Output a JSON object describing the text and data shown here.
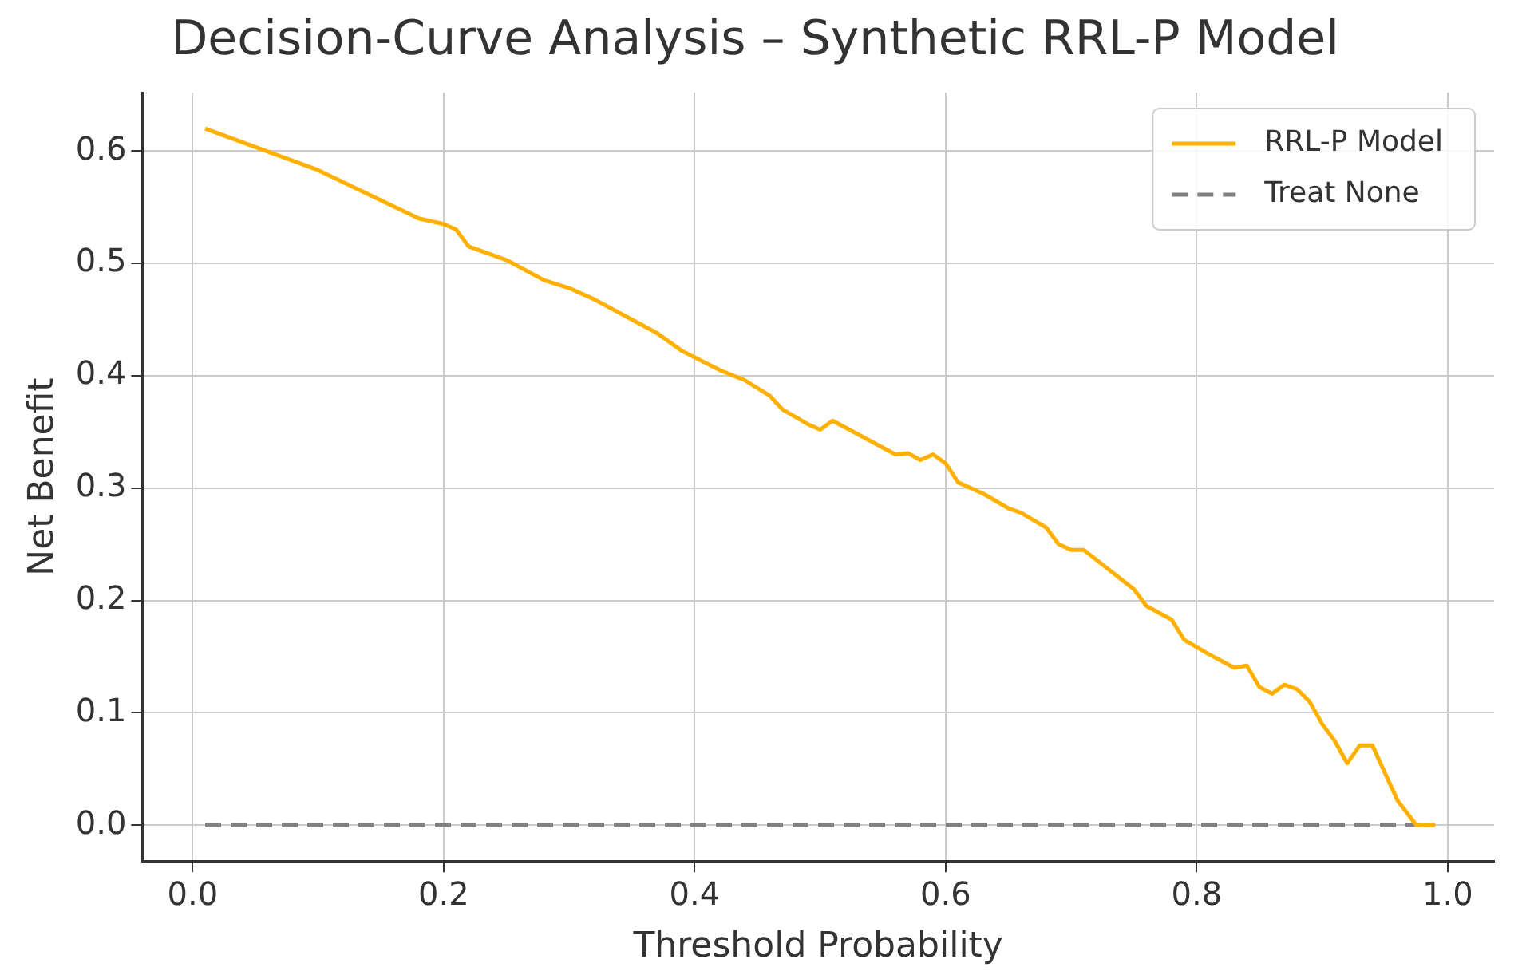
{
  "chart_data": {
    "type": "line",
    "title": "Decision-Curve Analysis – Synthetic RRL-P Model",
    "xlabel": "Threshold Probability",
    "ylabel": "Net Benefit",
    "xlim": [
      -0.04,
      1.037
    ],
    "ylim": [
      -0.032,
      0.652
    ],
    "xticks": [
      {
        "value": 0,
        "label": "0.0"
      },
      0.2,
      0.4,
      0.6,
      0.8,
      {
        "value": 1,
        "label": "1.0"
      }
    ],
    "yticks": [
      {
        "value": 0,
        "label": "0.0"
      },
      0.1,
      0.2,
      0.3,
      0.4,
      0.5,
      0.6
    ],
    "grid": true,
    "legend": "top right",
    "marker": "none",
    "series": [
      {
        "name": "RRL-P Model",
        "color": "#ffb000",
        "line_style": "solid",
        "x": [
          0.01,
          0.1,
          0.18,
          0.2,
          0.21,
          0.22,
          0.25,
          0.28,
          0.3,
          0.32,
          0.35,
          0.37,
          0.39,
          0.42,
          0.44,
          0.46,
          0.47,
          0.49,
          0.5,
          0.51,
          0.56,
          0.57,
          0.58,
          0.59,
          0.6,
          0.61,
          0.63,
          0.65,
          0.66,
          0.68,
          0.69,
          0.7,
          0.71,
          0.75,
          0.76,
          0.78,
          0.79,
          0.81,
          0.83,
          0.84,
          0.85,
          0.86,
          0.87,
          0.88,
          0.89,
          0.9,
          0.91,
          0.92,
          0.93,
          0.94,
          0.96,
          0.975,
          0.99
        ],
        "values": [
          0.62,
          0.583,
          0.54,
          0.535,
          0.53,
          0.515,
          0.503,
          0.485,
          0.478,
          0.468,
          0.45,
          0.438,
          0.422,
          0.405,
          0.396,
          0.382,
          0.37,
          0.357,
          0.352,
          0.36,
          0.33,
          0.331,
          0.325,
          0.33,
          0.322,
          0.305,
          0.295,
          0.282,
          0.278,
          0.265,
          0.25,
          0.245,
          0.245,
          0.21,
          0.195,
          0.183,
          0.165,
          0.152,
          0.14,
          0.142,
          0.123,
          0.117,
          0.125,
          0.121,
          0.11,
          0.09,
          0.075,
          0.055,
          0.071,
          0.071,
          0.022,
          0,
          0
        ]
      },
      {
        "name": "Treat None",
        "color": "#808080",
        "line_style": "dashed",
        "x": [
          0.01,
          0.99
        ],
        "values": [
          0,
          0
        ]
      }
    ]
  }
}
